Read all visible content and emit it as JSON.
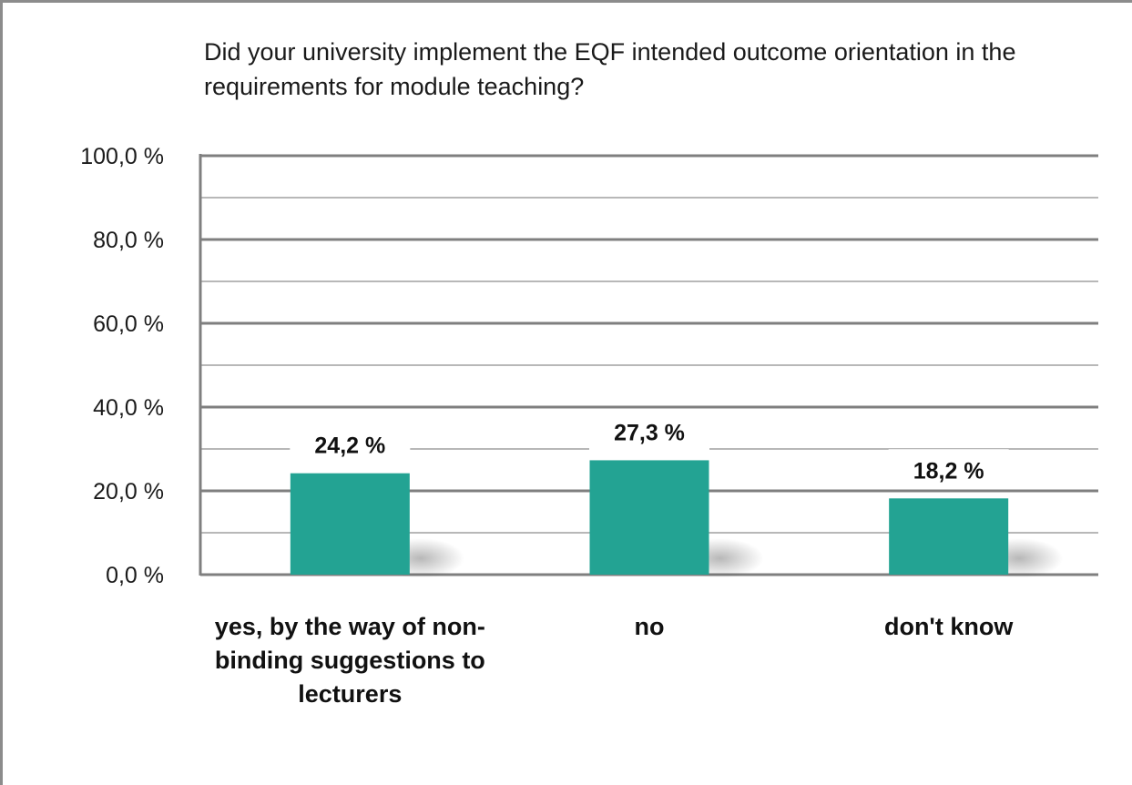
{
  "chart_data": {
    "type": "bar",
    "title": "Did your university implement the EQF intended outcome orientation in the requirements for module teaching?",
    "categories": [
      "yes, by the way of non-binding suggestions to lecturers",
      "no",
      "don't know"
    ],
    "values": [
      24.2,
      27.3,
      18.2
    ],
    "data_labels": [
      "24,2 %",
      "27,3 %",
      "18,2 %"
    ],
    "y_ticks": [
      {
        "value": 0,
        "label": "0,0 %"
      },
      {
        "value": 20,
        "label": "20,0 %"
      },
      {
        "value": 40,
        "label": "40,0 %"
      },
      {
        "value": 60,
        "label": "60,0 %"
      },
      {
        "value": 80,
        "label": "80,0 %"
      },
      {
        "value": 100,
        "label": "100,0 %"
      }
    ],
    "ylim": [
      0,
      100
    ],
    "minor_gridlines_step": 10,
    "grid": true,
    "legend": "none",
    "bar_color": "#23a393"
  }
}
